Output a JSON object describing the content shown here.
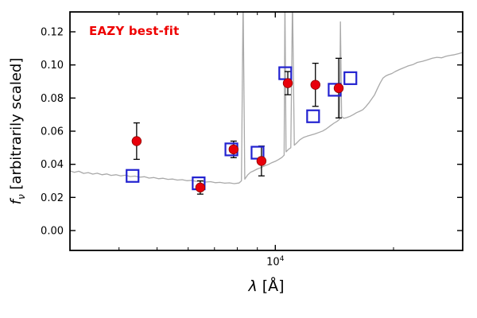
{
  "legend": {
    "label": "EAZY best-fit",
    "color": "#ee0000"
  },
  "labels": {
    "y_f": "f",
    "y_nu": "ν",
    "y_rest": " [arbitrarily scaled]",
    "x_lambda": "λ",
    "x_rest": " [Å]"
  },
  "axes": {
    "xscale": "log",
    "xlim": [
      3000,
      30000
    ],
    "ylim": [
      -0.012,
      0.132
    ],
    "y_major_ticks": [
      0.0,
      0.02,
      0.04,
      0.06,
      0.08,
      0.1,
      0.12
    ],
    "y_tick_labels": [
      "0.00",
      "0.02",
      "0.04",
      "0.06",
      "0.08",
      "0.10",
      "0.12"
    ],
    "y_minor_step": 0.01,
    "x_major_ticks": [
      10000
    ],
    "x_major_label_base": "10",
    "x_major_label_exp": "4",
    "x_minor_ticks": [
      4000,
      5000,
      6000,
      7000,
      8000,
      9000,
      20000
    ]
  },
  "chart_data": {
    "type": "line+scatter",
    "title": "",
    "xlabel": "λ [Å]",
    "ylabel": "fν [arbitrarily scaled]",
    "annotation": {
      "label": "EAZY best-fit",
      "color": "#ee0000"
    },
    "grid": false,
    "series": [
      {
        "name": "EAZY best-fit model spectrum",
        "type": "line",
        "color": "#a9a9a9",
        "points": [
          [
            3000,
            0.036
          ],
          [
            3080,
            0.0352
          ],
          [
            3160,
            0.0358
          ],
          [
            3250,
            0.0345
          ],
          [
            3340,
            0.035
          ],
          [
            3430,
            0.0341
          ],
          [
            3520,
            0.0346
          ],
          [
            3620,
            0.0337
          ],
          [
            3720,
            0.0342
          ],
          [
            3820,
            0.0333
          ],
          [
            3930,
            0.0337
          ],
          [
            4040,
            0.033
          ],
          [
            4150,
            0.0334
          ],
          [
            4270,
            0.0326
          ],
          [
            4390,
            0.0329
          ],
          [
            4510,
            0.0322
          ],
          [
            4640,
            0.0325
          ],
          [
            4770,
            0.0317
          ],
          [
            4900,
            0.032
          ],
          [
            5040,
            0.0313
          ],
          [
            5180,
            0.0316
          ],
          [
            5330,
            0.0309
          ],
          [
            5480,
            0.0311
          ],
          [
            5630,
            0.0305
          ],
          [
            5790,
            0.0307
          ],
          [
            5950,
            0.0301
          ],
          [
            6120,
            0.0303
          ],
          [
            6290,
            0.0297
          ],
          [
            6470,
            0.0299
          ],
          [
            6650,
            0.0293
          ],
          [
            6840,
            0.0295
          ],
          [
            7030,
            0.0289
          ],
          [
            7230,
            0.0291
          ],
          [
            7430,
            0.0286
          ],
          [
            7640,
            0.0288
          ],
          [
            7860,
            0.0283
          ],
          [
            8080,
            0.0287
          ],
          [
            8200,
            0.03
          ],
          [
            8280,
            0.14
          ],
          [
            8360,
            0.031
          ],
          [
            8500,
            0.0335
          ],
          [
            8650,
            0.0352
          ],
          [
            8800,
            0.036
          ],
          [
            9000,
            0.0372
          ],
          [
            9200,
            0.038
          ],
          [
            9400,
            0.0391
          ],
          [
            9600,
            0.0399
          ],
          [
            9800,
            0.041
          ],
          [
            10000,
            0.0418
          ],
          [
            10200,
            0.0429
          ],
          [
            10400,
            0.0442
          ],
          [
            10530,
            0.0455
          ],
          [
            10580,
            0.14
          ],
          [
            10650,
            0.0475
          ],
          [
            10800,
            0.049
          ],
          [
            10950,
            0.05
          ],
          [
            11060,
            0.14
          ],
          [
            11180,
            0.0515
          ],
          [
            11350,
            0.053
          ],
          [
            11550,
            0.0548
          ],
          [
            11800,
            0.0562
          ],
          [
            12050,
            0.057
          ],
          [
            12300,
            0.0576
          ],
          [
            12600,
            0.0583
          ],
          [
            12900,
            0.0592
          ],
          [
            13200,
            0.0601
          ],
          [
            13500,
            0.0615
          ],
          [
            13800,
            0.0632
          ],
          [
            14100,
            0.0648
          ],
          [
            14400,
            0.0661
          ],
          [
            14580,
            0.0672
          ],
          [
            14650,
            0.126
          ],
          [
            14750,
            0.0688
          ],
          [
            14950,
            0.0678
          ],
          [
            15200,
            0.0682
          ],
          [
            15500,
            0.069
          ],
          [
            15800,
            0.07
          ],
          [
            16100,
            0.0712
          ],
          [
            16400,
            0.072
          ],
          [
            16700,
            0.0729
          ],
          [
            17000,
            0.0748
          ],
          [
            17300,
            0.077
          ],
          [
            17600,
            0.0795
          ],
          [
            17900,
            0.082
          ],
          [
            18200,
            0.0858
          ],
          [
            18500,
            0.0892
          ],
          [
            18800,
            0.092
          ],
          [
            19100,
            0.0933
          ],
          [
            19400,
            0.0941
          ],
          [
            19800,
            0.0948
          ],
          [
            20200,
            0.096
          ],
          [
            20700,
            0.0972
          ],
          [
            21200,
            0.0982
          ],
          [
            21800,
            0.0994
          ],
          [
            22400,
            0.1002
          ],
          [
            23000,
            0.1015
          ],
          [
            23700,
            0.1022
          ],
          [
            24400,
            0.1031
          ],
          [
            25100,
            0.104
          ],
          [
            25800,
            0.1046
          ],
          [
            26500,
            0.1043
          ],
          [
            27200,
            0.1052
          ],
          [
            27900,
            0.1058
          ],
          [
            28600,
            0.1062
          ],
          [
            29300,
            0.1068
          ],
          [
            30000,
            0.1075
          ]
        ]
      },
      {
        "name": "Observed photometry",
        "type": "scatter",
        "marker": "filled-circle",
        "color": "#e8000b",
        "edge_color": "#8b0000",
        "x": [
          4435,
          6440,
          7830,
          9220,
          10760,
          12650,
          14500
        ],
        "y": [
          0.054,
          0.026,
          0.049,
          0.042,
          0.089,
          0.088,
          0.086
        ],
        "yerr": [
          0.011,
          0.004,
          0.005,
          0.009,
          0.007,
          0.013,
          0.018
        ]
      },
      {
        "name": "Model (template) photometry",
        "type": "scatter",
        "marker": "open-square",
        "color": "#2222d0",
        "x": [
          4330,
          6380,
          7730,
          9010,
          10600,
          12480,
          14160,
          15530
        ],
        "y": [
          0.033,
          0.0285,
          0.049,
          0.047,
          0.095,
          0.069,
          0.085,
          0.092
        ]
      }
    ]
  }
}
